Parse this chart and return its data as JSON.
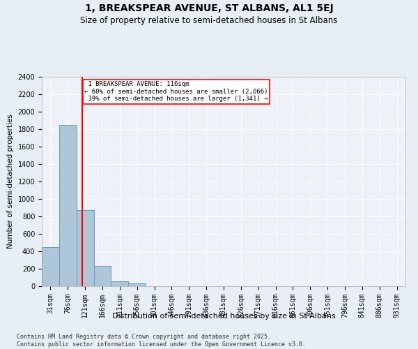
{
  "title": "1, BREAKSPEAR AVENUE, ST ALBANS, AL1 5EJ",
  "subtitle": "Size of property relative to semi-detached houses in St Albans",
  "xlabel": "Distribution of semi-detached houses by size in St Albans",
  "ylabel": "Number of semi-detached properties",
  "bar_labels": [
    "31sqm",
    "76sqm",
    "121sqm",
    "166sqm",
    "211sqm",
    "256sqm",
    "301sqm",
    "346sqm",
    "391sqm",
    "436sqm",
    "481sqm",
    "526sqm",
    "571sqm",
    "616sqm",
    "661sqm",
    "706sqm",
    "751sqm",
    "796sqm",
    "841sqm",
    "886sqm",
    "931sqm"
  ],
  "bar_values": [
    450,
    1850,
    870,
    235,
    55,
    30,
    0,
    0,
    0,
    0,
    0,
    0,
    0,
    0,
    0,
    0,
    0,
    0,
    0,
    0,
    0
  ],
  "bar_color": "#aec6d8",
  "bar_edgecolor": "#6699bb",
  "property_line_x": 1.82,
  "property_line_label": "1 BREAKSPEAR AVENUE: 116sqm",
  "pct_smaller": 60,
  "pct_larger": 39,
  "count_smaller": 2066,
  "count_larger": 1341,
  "annotation_box_color": "#cc0000",
  "ylim": [
    0,
    2400
  ],
  "yticks": [
    0,
    200,
    400,
    600,
    800,
    1000,
    1200,
    1400,
    1600,
    1800,
    2000,
    2200,
    2400
  ],
  "background_color": "#e8eef5",
  "plot_background": "#eef2f8",
  "grid_color": "#ffffff",
  "footer": "Contains HM Land Registry data © Crown copyright and database right 2025.\nContains public sector information licensed under the Open Government Licence v3.0.",
  "title_fontsize": 10,
  "subtitle_fontsize": 8.5,
  "xlabel_fontsize": 8,
  "ylabel_fontsize": 7.5,
  "tick_fontsize": 7,
  "footer_fontsize": 6
}
